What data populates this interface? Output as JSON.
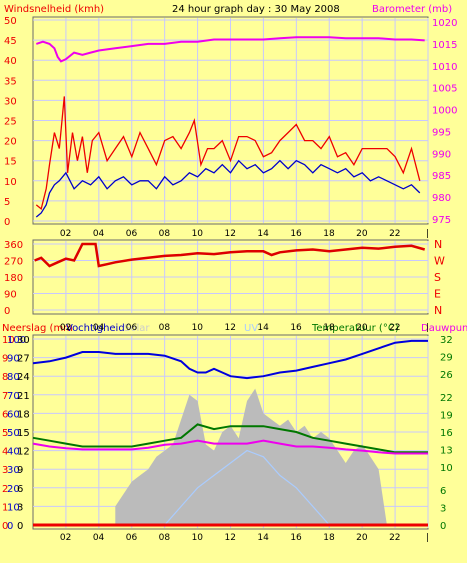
{
  "header": {
    "left_label": "Windsnelheid (kmh)",
    "title": "24 hour graph day : 30 May 2008",
    "right_label": "Barometer (mb)"
  },
  "colors": {
    "background": "#ffff99",
    "wind": "#ee0000",
    "wind_avg": "#0000cc",
    "barometer": "#ee00ee",
    "direction": "#dd0000",
    "humidity": "#0000dd",
    "temperature": "#007700",
    "dewpoint": "#ee00ee",
    "solar": "#bbbbbb",
    "uv": "#aaccff",
    "rain": "#ee0000",
    "grid": "#c8c8ff"
  },
  "x_ticks": [
    "02",
    "04",
    "06",
    "08",
    "10",
    "12",
    "14",
    "16",
    "18",
    "20",
    "22"
  ],
  "bottom_header": {
    "rain_label": "Neerslag (mm",
    "humidity_label": "Vochtigheid",
    "solar_label": "Solar",
    "uv_label": "UV",
    "temp_label": "Temperatuur (°C)",
    "dew_label": "Dauwpunt"
  },
  "chart_data": [
    {
      "type": "line",
      "name": "wind_barometer",
      "x_unit": "hour",
      "left_axis": {
        "label": "Windsnelheid (kmh)",
        "range": [
          0,
          50
        ],
        "ticks": [
          0,
          5,
          10,
          15,
          20,
          25,
          30,
          35,
          40,
          45,
          50
        ]
      },
      "right_axis": {
        "label": "Barometer (mb)",
        "range": [
          975,
          1020
        ],
        "ticks": [
          975,
          980,
          985,
          990,
          995,
          1000,
          1005,
          1010,
          1015,
          1020
        ]
      },
      "series": [
        {
          "name": "Windsnelheid",
          "axis": "left",
          "x": [
            0.2,
            0.5,
            0.8,
            1.0,
            1.3,
            1.6,
            1.9,
            2.1,
            2.4,
            2.7,
            3.0,
            3.3,
            3.6,
            4.0,
            4.5,
            5.0,
            5.5,
            6.0,
            6.5,
            7.0,
            7.5,
            8.0,
            8.5,
            9.0,
            9.5,
            9.8,
            10.2,
            10.6,
            11.0,
            11.5,
            12.0,
            12.5,
            13.0,
            13.5,
            14.0,
            14.5,
            15.0,
            15.5,
            16.0,
            16.5,
            17.0,
            17.5,
            18.0,
            18.5,
            19.0,
            19.5,
            20.0,
            20.5,
            21.0,
            21.5,
            22.0,
            22.5,
            23.0,
            23.5
          ],
          "y": [
            4,
            3,
            8,
            14,
            22,
            18,
            31,
            12,
            22,
            15,
            21,
            12,
            20,
            22,
            15,
            18,
            21,
            16,
            22,
            18,
            14,
            20,
            21,
            18,
            22,
            25,
            14,
            18,
            18,
            20,
            15,
            21,
            21,
            20,
            16,
            17,
            20,
            22,
            24,
            20,
            20,
            18,
            21,
            16,
            17,
            14,
            18,
            18,
            18,
            18,
            16,
            12,
            18,
            10
          ]
        },
        {
          "name": "Gemiddelde wind",
          "axis": "left",
          "x": [
            0.2,
            0.5,
            0.8,
            1.0,
            1.3,
            1.6,
            2.0,
            2.5,
            3.0,
            3.5,
            4.0,
            4.5,
            5.0,
            5.5,
            6.0,
            6.5,
            7.0,
            7.5,
            8.0,
            8.5,
            9.0,
            9.5,
            10.0,
            10.5,
            11.0,
            11.5,
            12.0,
            12.5,
            13.0,
            13.5,
            14.0,
            14.5,
            15.0,
            15.5,
            16.0,
            16.5,
            17.0,
            17.5,
            18.0,
            18.5,
            19.0,
            19.5,
            20.0,
            20.5,
            21.0,
            21.5,
            22.0,
            22.5,
            23.0,
            23.5
          ],
          "y": [
            1,
            2,
            4,
            7,
            9,
            10,
            12,
            8,
            10,
            9,
            11,
            8,
            10,
            11,
            9,
            10,
            10,
            8,
            11,
            9,
            10,
            12,
            11,
            13,
            12,
            14,
            12,
            15,
            13,
            14,
            12,
            13,
            15,
            13,
            15,
            14,
            12,
            14,
            13,
            12,
            13,
            11,
            12,
            10,
            11,
            10,
            9,
            8,
            9,
            7
          ]
        },
        {
          "name": "Barometer",
          "axis": "right",
          "x": [
            0.2,
            0.6,
            1.0,
            1.3,
            1.5,
            1.7,
            2.0,
            2.5,
            3.0,
            3.5,
            4.0,
            5.0,
            6.0,
            7.0,
            8.0,
            9.0,
            10.0,
            11.0,
            12.0,
            13.0,
            14.0,
            15.0,
            16.0,
            17.0,
            18.0,
            19.0,
            20.0,
            21.0,
            22.0,
            23.0,
            23.8
          ],
          "y": [
            1015,
            1015.5,
            1015,
            1014,
            1012,
            1011,
            1011.5,
            1013,
            1012.5,
            1013,
            1013.5,
            1014,
            1014.5,
            1015,
            1015,
            1015.5,
            1015.5,
            1016,
            1016,
            1016,
            1016,
            1016.3,
            1016.5,
            1016.5,
            1016.5,
            1016.3,
            1016.3,
            1016.3,
            1016,
            1016,
            1015.8
          ]
        }
      ]
    },
    {
      "type": "line",
      "name": "wind_direction",
      "x_unit": "hour",
      "left_axis": {
        "range": [
          0,
          360
        ],
        "ticks": [
          0,
          90,
          180,
          270,
          360
        ]
      },
      "right_axis": {
        "ticks": [
          "N",
          "W",
          "S",
          "E",
          "N"
        ]
      },
      "series": [
        {
          "name": "Windrichting",
          "x": [
            0.1,
            0.5,
            1.0,
            1.5,
            2.0,
            2.5,
            3.0,
            3.5,
            3.8,
            4.0,
            4.5,
            5.0,
            6.0,
            7.0,
            8.0,
            9.0,
            10.0,
            11.0,
            12.0,
            13.0,
            14.0,
            14.5,
            15.0,
            16.0,
            17.0,
            18.0,
            19.0,
            20.0,
            21.0,
            22.0,
            23.0,
            23.8
          ],
          "y": [
            270,
            285,
            240,
            260,
            280,
            270,
            360,
            360,
            360,
            240,
            250,
            260,
            275,
            285,
            295,
            300,
            310,
            305,
            315,
            320,
            320,
            300,
            315,
            325,
            330,
            320,
            330,
            340,
            335,
            345,
            350,
            330
          ]
        }
      ]
    },
    {
      "type": "line",
      "name": "rain_humidity_temperature",
      "x_unit": "hour",
      "left_axes": [
        {
          "label": "Neerslag (mm",
          "range": [
            0,
            10
          ],
          "ticks": [
            0,
            1,
            2,
            3,
            4,
            5,
            6,
            7,
            8,
            9,
            10
          ]
        },
        {
          "label": "Vochtigheid",
          "range": [
            0,
            100
          ],
          "ticks": [
            0,
            10,
            20,
            30,
            40,
            50,
            60,
            70,
            80,
            90,
            100
          ]
        },
        {
          "label": "Solar",
          "range": [
            0,
            30
          ],
          "ticks": [
            0,
            3,
            6,
            9,
            12,
            15,
            18,
            21,
            24,
            27,
            30
          ]
        }
      ],
      "right_axis": {
        "label": "Temperatuur (°C)",
        "range": [
          0,
          32
        ],
        "ticks": [
          0,
          3,
          6,
          10,
          13,
          16,
          19,
          22,
          26,
          29,
          32
        ]
      },
      "series": [
        {
          "name": "Vochtigheid",
          "axis": "humidity",
          "x": [
            0,
            1,
            2,
            3,
            4,
            5,
            6,
            7,
            8,
            9,
            9.5,
            10,
            10.5,
            11,
            11.5,
            12,
            13,
            14,
            15,
            16,
            17,
            18,
            19,
            20,
            21,
            22,
            23,
            24
          ],
          "y": [
            87,
            88,
            90,
            93,
            93,
            92,
            92,
            92,
            91,
            88,
            84,
            82,
            82,
            84,
            82,
            80,
            79,
            80,
            82,
            83,
            85,
            87,
            89,
            92,
            95,
            98,
            99,
            99
          ]
        },
        {
          "name": "Temperatuur",
          "axis": "temp",
          "x": [
            0,
            1,
            2,
            3,
            4,
            5,
            6,
            7,
            8,
            9,
            10,
            11,
            12,
            13,
            14,
            15,
            16,
            17,
            18,
            19,
            20,
            21,
            22,
            23,
            24
          ],
          "y": [
            15,
            14.5,
            14,
            13.5,
            13.5,
            13.5,
            13.5,
            14,
            14.5,
            15,
            17.3,
            16.5,
            17,
            17,
            17,
            16.5,
            16,
            15,
            14.5,
            14,
            13.5,
            13,
            12.5,
            12.5,
            12.5
          ]
        },
        {
          "name": "Dauwpunt",
          "axis": "temp",
          "x": [
            0,
            1,
            2,
            3,
            4,
            5,
            6,
            7,
            8,
            9,
            10,
            11,
            12,
            13,
            14,
            15,
            16,
            17,
            18,
            19,
            20,
            21,
            22,
            23,
            24
          ],
          "y": [
            14,
            13.5,
            13.2,
            13,
            13,
            13,
            13,
            13.3,
            13.8,
            14,
            14.5,
            14,
            14,
            14,
            14.5,
            14,
            13.5,
            13.5,
            13.3,
            13,
            12.8,
            12.5,
            12.3,
            12.3,
            12.3
          ]
        },
        {
          "name": "Solar",
          "axis": "solar",
          "x": [
            5,
            5.5,
            6,
            6.5,
            7,
            7.5,
            8,
            8.5,
            9,
            9.5,
            10,
            10.5,
            11,
            11.5,
            12,
            12.5,
            13,
            13.5,
            14,
            14.5,
            15,
            15.5,
            16,
            16.5,
            17,
            17.5,
            18,
            18.5,
            19,
            19.5,
            20,
            20.5,
            21,
            21.5
          ],
          "y": [
            3,
            5,
            7,
            8,
            9,
            11,
            12,
            13,
            17,
            21,
            20,
            13,
            12,
            15,
            16,
            14,
            20,
            22,
            18,
            17,
            16,
            17,
            15,
            16,
            14,
            15,
            14,
            12,
            10,
            12,
            13,
            11,
            9,
            0
          ]
        },
        {
          "name": "UV",
          "axis": "solar",
          "x": [
            8,
            9,
            10,
            11,
            12,
            13,
            14,
            15,
            16,
            17,
            18
          ],
          "y": [
            0,
            3,
            6,
            8,
            10,
            12,
            11,
            8,
            6,
            3,
            0
          ]
        },
        {
          "name": "Neerslag",
          "axis": "rain",
          "x": [
            0,
            24
          ],
          "y": [
            0,
            0
          ]
        }
      ]
    }
  ]
}
